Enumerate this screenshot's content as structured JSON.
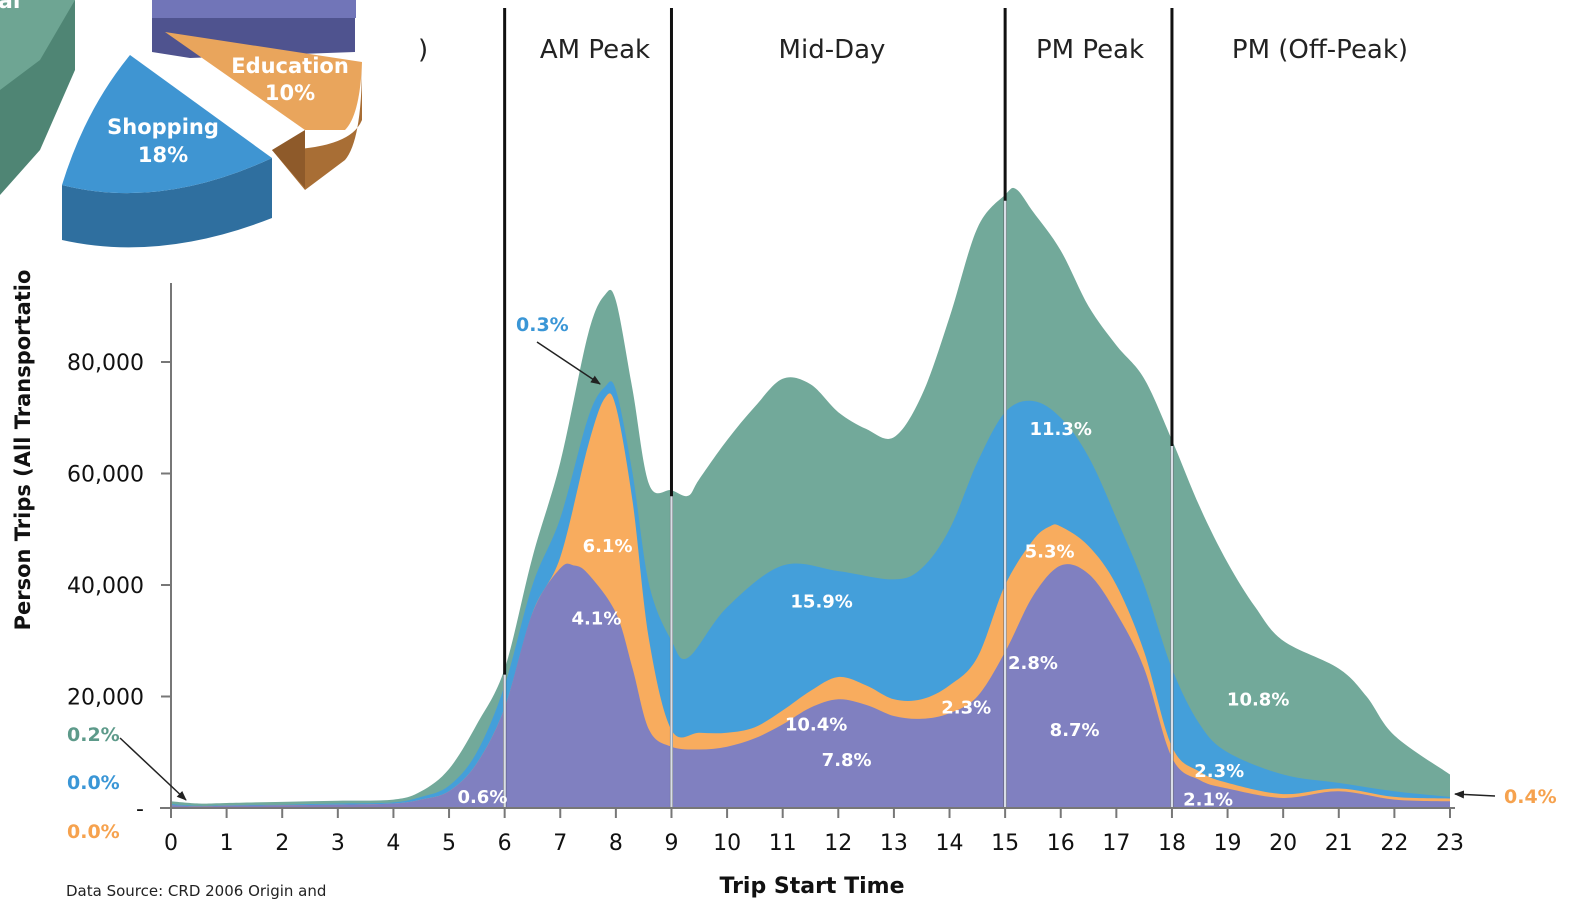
{
  "chart_data": {
    "type": "area",
    "stacked": true,
    "xlabel": "Trip Start Time",
    "ylabel": "Person Trips (All Transportatio",
    "ylim": [
      0,
      95000
    ],
    "xlim": [
      0,
      23
    ],
    "x_ticks": [
      "0",
      "1",
      "2",
      "3",
      "4",
      "5",
      "6",
      "7",
      "8",
      "9",
      "10",
      "11",
      "12",
      "13",
      "14",
      "15",
      "16",
      "17",
      "18",
      "19",
      "20",
      "21",
      "22",
      "23"
    ],
    "y_ticks": [
      {
        "value": 0,
        "label": "-"
      },
      {
        "value": 20000,
        "label": "20,000"
      },
      {
        "value": 40000,
        "label": "40,000"
      },
      {
        "value": 60000,
        "label": "60,000"
      },
      {
        "value": 80000,
        "label": "80,000"
      }
    ],
    "periods": [
      {
        "label": ")",
        "start": 0,
        "end": 6
      },
      {
        "label": "AM Peak",
        "start": 6,
        "end": 9
      },
      {
        "label": "Mid-Day",
        "start": 9,
        "end": 15
      },
      {
        "label": "PM Peak",
        "start": 15,
        "end": 18
      },
      {
        "label": "PM (Off-Peak)",
        "start": 18,
        "end": 23
      }
    ],
    "colors": {
      "purple": "#8080c0",
      "orange": "#f8ac5e",
      "blue": "#449fda",
      "teal": "#72a99a",
      "teal_text": "#5d9a8a",
      "blue_text": "#3a96d6",
      "orange_text": "#f6a24e"
    },
    "cumulative_series": [
      {
        "color": "purple",
        "x": [
          0,
          0.5,
          1,
          2,
          3,
          4,
          4.5,
          5,
          5.5,
          6,
          6.5,
          7,
          7.25,
          7.5,
          8,
          8.3,
          8.6,
          9,
          9.5,
          10,
          10.5,
          11,
          11.5,
          12,
          12.5,
          13,
          13.5,
          14,
          14.5,
          15,
          15.5,
          16,
          16.5,
          17,
          17.5,
          18,
          18.5,
          19,
          20,
          21,
          22,
          23
        ],
        "y": [
          500,
          300,
          400,
          500,
          600,
          800,
          1500,
          3000,
          8000,
          18000,
          35000,
          43000,
          43500,
          42000,
          35000,
          25000,
          14000,
          11000,
          10500,
          11000,
          12500,
          15000,
          18000,
          19500,
          18500,
          16500,
          16000,
          17000,
          20000,
          28000,
          38000,
          43500,
          42000,
          35000,
          25000,
          9000,
          5000,
          3500,
          1800,
          3000,
          1500,
          1200
        ]
      },
      {
        "color": "orange",
        "x": [
          0,
          0.5,
          1,
          2,
          3,
          4,
          4.5,
          5,
          5.5,
          6,
          6.5,
          7,
          7.5,
          7.8,
          8,
          8.3,
          8.6,
          9,
          9.5,
          10,
          10.5,
          11,
          11.5,
          12,
          12.5,
          13,
          13.5,
          14,
          14.5,
          15,
          15.5,
          15.8,
          16,
          16.5,
          17,
          17.5,
          18,
          18.5,
          19,
          20,
          21,
          22,
          23
        ],
        "y": [
          500,
          300,
          400,
          500,
          600,
          800,
          1500,
          3000,
          8000,
          18000,
          35000,
          45000,
          65000,
          73500,
          72000,
          55000,
          30000,
          14000,
          13500,
          13500,
          14500,
          17500,
          21000,
          23500,
          22000,
          19500,
          19500,
          22000,
          27000,
          40000,
          48000,
          50500,
          50500,
          47000,
          40000,
          28000,
          11000,
          6500,
          4500,
          2500,
          3500,
          2000,
          1700
        ]
      },
      {
        "color": "blue",
        "x": [
          0,
          0.5,
          1,
          2,
          3,
          4,
          4.5,
          5,
          5.5,
          6,
          6.5,
          7,
          7.5,
          7.8,
          8,
          8.3,
          8.6,
          9,
          9.3,
          10,
          11,
          12,
          13,
          13.5,
          14,
          14.5,
          15,
          15.5,
          16,
          16.5,
          17,
          17.5,
          18,
          18.5,
          19,
          20,
          21,
          22,
          23
        ],
        "y": [
          700,
          400,
          500,
          600,
          800,
          1000,
          2000,
          4000,
          10000,
          22000,
          40000,
          52000,
          70000,
          75500,
          75000,
          60000,
          40000,
          30000,
          27000,
          36000,
          43500,
          42500,
          41000,
          43000,
          50000,
          62000,
          71000,
          73000,
          70000,
          63000,
          52000,
          40000,
          25000,
          15000,
          10000,
          6000,
          4500,
          3000,
          2000
        ]
      },
      {
        "color": "teal",
        "x": [
          0,
          0.5,
          1,
          2,
          3,
          4,
          4.5,
          5,
          5.5,
          6,
          6.5,
          7,
          7.5,
          7.8,
          8,
          8.3,
          8.6,
          9,
          9.3,
          9.5,
          10,
          10.5,
          11,
          11.5,
          12,
          12.5,
          13,
          13.5,
          14,
          14.5,
          15,
          15.2,
          15.5,
          16,
          16.5,
          17,
          17.5,
          18,
          18.5,
          19,
          19.5,
          20,
          21,
          21.5,
          22,
          23
        ],
        "y": [
          1200,
          800,
          900,
          1100,
          1300,
          1500,
          3000,
          7000,
          15000,
          25000,
          45000,
          62000,
          85000,
          92000,
          91000,
          75000,
          58000,
          57000,
          56000,
          59000,
          66000,
          72000,
          77000,
          76000,
          71000,
          68000,
          66500,
          74000,
          88000,
          104000,
          110000,
          111000,
          107000,
          100000,
          90000,
          83000,
          77000,
          66000,
          54000,
          44000,
          36000,
          30000,
          25000,
          20000,
          13000,
          6000
        ]
      }
    ],
    "region_labels": [
      {
        "text": "6.1%",
        "x": 7.85,
        "y": 47000,
        "color": "white"
      },
      {
        "text": "4.1%",
        "x": 7.65,
        "y": 34000,
        "color": "white"
      },
      {
        "text": "0.6%",
        "x": 5.6,
        "y": 2000,
        "color": "white"
      },
      {
        "text": "15.9%",
        "x": 11.7,
        "y": 37000,
        "color": "white"
      },
      {
        "text": "10.4%",
        "x": 11.6,
        "y": 15000,
        "color": "white"
      },
      {
        "text": "7.8%",
        "x": 12.15,
        "y": 8600,
        "color": "white"
      },
      {
        "text": "11.3%",
        "x": 16.0,
        "y": 68000,
        "color": "white"
      },
      {
        "text": "5.3%",
        "x": 15.8,
        "y": 46000,
        "color": "white"
      },
      {
        "text": "2.8%",
        "x": 15.5,
        "y": 26000,
        "color": "white"
      },
      {
        "text": "2.3%",
        "x": 14.3,
        "y": 18000,
        "color": "white"
      },
      {
        "text": "8.7%",
        "x": 16.25,
        "y": 14000,
        "color": "white"
      },
      {
        "text": "10.8%",
        "x": 19.55,
        "y": 19500,
        "color": "white"
      },
      {
        "text": "2.3%",
        "x": 18.85,
        "y": 6600,
        "color": "white"
      },
      {
        "text": "2.1%",
        "x": 18.65,
        "y": 1500,
        "color": "white"
      }
    ],
    "callouts": [
      {
        "text": "0.3%",
        "color": "blue_text"
      },
      {
        "text": "0.2%",
        "color": "teal_text"
      },
      {
        "text": "0.0%",
        "color": "blue_text"
      },
      {
        "text": "0.0%",
        "color": "orange_text"
      },
      {
        "text": "0.4%",
        "color": "orange_text"
      }
    ],
    "pie_inset": {
      "type": "pie",
      "slices": [
        {
          "label": "Shopping",
          "value_label": "18%",
          "value": 18,
          "color": "#3f95d2"
        },
        {
          "label": "Education",
          "value_label": "10%",
          "value": 10,
          "color": "#e9a55c"
        },
        {
          "label": "",
          "value_label": "",
          "value": null,
          "color": "#6a6fb0"
        },
        {
          "label": "al",
          "value_label": "",
          "value": null,
          "color": "#6ea593"
        }
      ]
    },
    "source_note": "Data Source:  CRD 2006 Origin and"
  }
}
